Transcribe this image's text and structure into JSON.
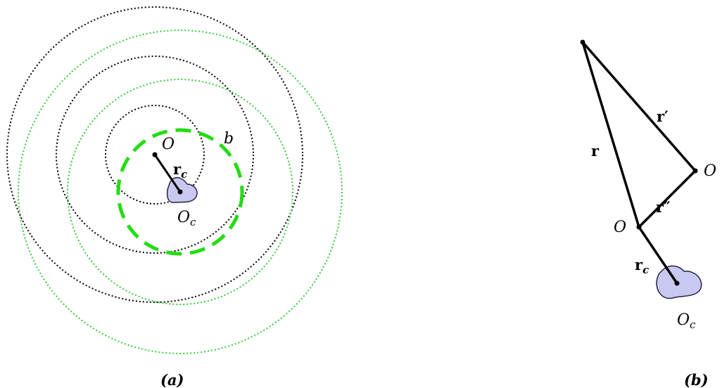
{
  "colors": {
    "ink": "#000000",
    "green_dotted": "#33cc33",
    "green_dashed": "#22dd11",
    "blob_fill": "#c8c8f0",
    "blob_stroke": "#222244"
  },
  "panel_a": {
    "caption": "(a)",
    "label_O": "O",
    "label_b": "b",
    "label_r": "r",
    "label_r_sub": "c",
    "label_Oc": "O",
    "label_Oc_sub": "c"
  },
  "panel_b": {
    "caption": "(b)",
    "label_r_prime": "r′",
    "label_r": "r",
    "label_O_right": "O",
    "label_r_dprime": "r″",
    "label_O_mid": "O",
    "label_rc": "r",
    "label_rc_sub": "c",
    "label_Oc": "O",
    "label_Oc_sub": "c"
  }
}
